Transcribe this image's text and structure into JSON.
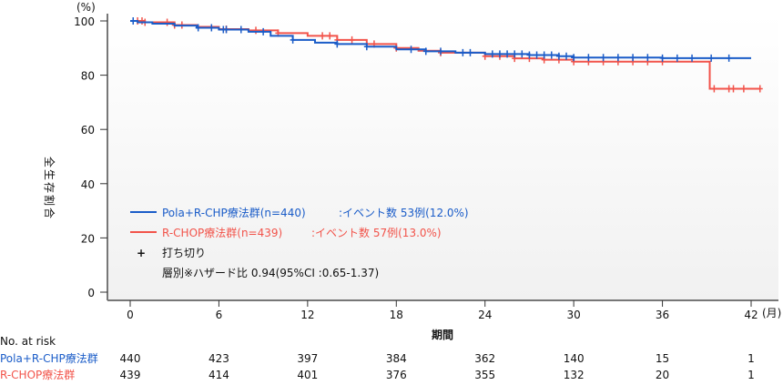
{
  "chart_data": {
    "type": "line",
    "subtype": "kaplan-meier",
    "ylabel": "全生存割合",
    "yunit": "(%)",
    "xlabel": "期間",
    "xunit": "(月)",
    "xlim": [
      0,
      42
    ],
    "ylim": [
      0,
      100
    ],
    "xticks": [
      0,
      6,
      12,
      18,
      24,
      30,
      36,
      42
    ],
    "yticks": [
      0,
      20,
      40,
      60,
      80,
      100
    ],
    "grid": false,
    "series": [
      {
        "name": "Pola+R-CHP療法群(n=440)",
        "event_text": ":イベント数 53例(12.0%)",
        "color": "#1a5cc8",
        "steps": [
          [
            0,
            100
          ],
          [
            0.5,
            99.5
          ],
          [
            1.5,
            99
          ],
          [
            3,
            98.3
          ],
          [
            4.5,
            97.5
          ],
          [
            6,
            96.8
          ],
          [
            8,
            96
          ],
          [
            9.5,
            94.5
          ],
          [
            11,
            93
          ],
          [
            12.5,
            92
          ],
          [
            14,
            91.5
          ],
          [
            16,
            90.5
          ],
          [
            18,
            89.5
          ],
          [
            20,
            88.8
          ],
          [
            22,
            88.3
          ],
          [
            24,
            87.8
          ],
          [
            27,
            87.4
          ],
          [
            29,
            87
          ],
          [
            30,
            86.5
          ],
          [
            36,
            86.3
          ],
          [
            42,
            86.3
          ]
        ],
        "censor": [
          0.2,
          4.6,
          5.5,
          6.3,
          6.5,
          7.5,
          9,
          11,
          14,
          16,
          19,
          20,
          21,
          22.5,
          23,
          24.5,
          25,
          25.5,
          26,
          26.5,
          27,
          27.5,
          28,
          28.5,
          29,
          29.5,
          30,
          31,
          32,
          33,
          34,
          35,
          36,
          37,
          38,
          39.3,
          40.5
        ]
      },
      {
        "name": "R-CHOP療法群(n=439)",
        "event_text": ":イベント数 57例(13.0%)",
        "color": "#f2534a",
        "steps": [
          [
            0,
            100
          ],
          [
            1,
            99.5
          ],
          [
            3,
            98.5
          ],
          [
            4.5,
            97.8
          ],
          [
            6,
            97
          ],
          [
            8,
            96.5
          ],
          [
            10,
            95.5
          ],
          [
            12,
            94.5
          ],
          [
            14,
            93
          ],
          [
            16,
            91.5
          ],
          [
            18,
            90
          ],
          [
            19.5,
            89
          ],
          [
            21,
            88.3
          ],
          [
            24,
            87
          ],
          [
            26,
            86.2
          ],
          [
            28,
            85.7
          ],
          [
            30,
            85
          ],
          [
            36,
            85
          ],
          [
            39.2,
            75
          ],
          [
            42.6,
            75
          ]
        ],
        "censor": [
          0.5,
          0.8,
          1,
          2.5,
          3,
          3.5,
          6.5,
          8.5,
          10,
          13,
          13.5,
          14,
          15,
          16.5,
          18,
          21,
          24,
          25,
          26,
          27,
          28,
          29,
          30,
          31,
          32,
          33,
          34,
          35,
          36,
          39.5,
          40.5,
          40.8,
          41.5,
          42.6
        ]
      }
    ],
    "legend_placement": "bottom-left",
    "censor_label": "打ち切り",
    "hazard_text": "層別※ハザード比 0.94(95%CI :0.65-1.37)",
    "risk_table": {
      "title": "No. at risk",
      "rows": [
        {
          "label": "Pola+R-CHP療法群",
          "values": [
            440,
            423,
            397,
            384,
            362,
            140,
            15,
            1
          ]
        },
        {
          "label": "R-CHOP療法群",
          "values": [
            439,
            414,
            401,
            376,
            355,
            132,
            20,
            1
          ]
        }
      ]
    }
  }
}
